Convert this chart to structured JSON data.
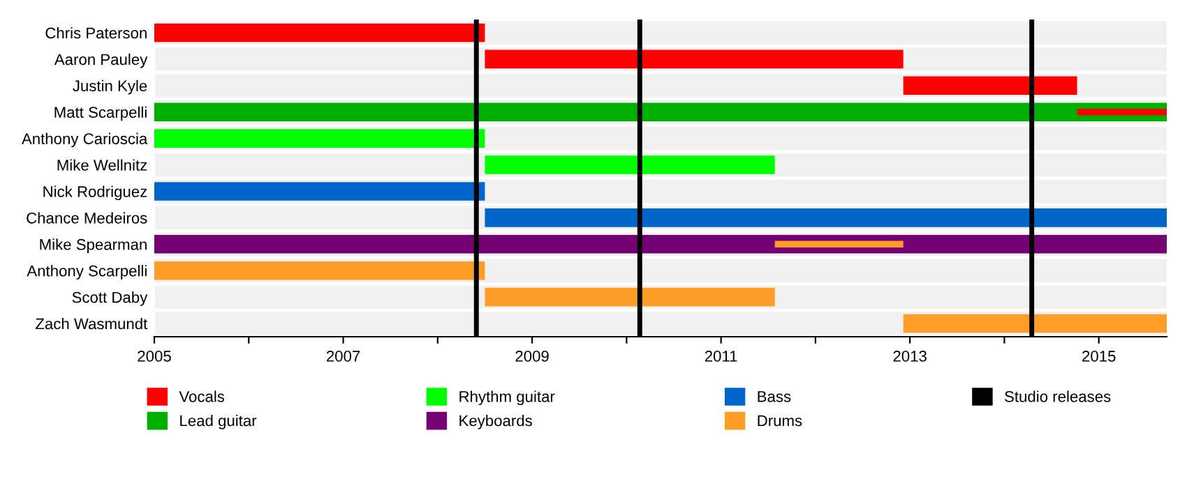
{
  "chart_data": {
    "type": "bar",
    "orientation": "horizontal",
    "categories": [
      "Chris Paterson",
      "Aaron Pauley",
      "Justin Kyle",
      "Matt Scarpelli",
      "Anthony Carioscia",
      "Mike Wellnitz",
      "Nick Rodriguez",
      "Chance Medeiros",
      "Mike Spearman",
      "Anthony Scarpelli",
      "Scott Daby",
      "Zach Wasmundt"
    ],
    "series": [
      {
        "name": "Vocals",
        "color": "#ff0000",
        "base": [
          2005,
          2008.5,
          2012.93,
          2014.77,
          null,
          null,
          null,
          null,
          null,
          null,
          null,
          null
        ],
        "values": [
          3.5,
          4.43,
          1.84,
          0.95,
          null,
          null,
          null,
          null,
          null,
          null,
          null,
          null
        ]
      },
      {
        "name": "Lead guitar",
        "color": "#00b000",
        "base": [
          null,
          null,
          null,
          2005,
          null,
          null,
          null,
          null,
          null,
          null,
          null,
          null
        ],
        "values": [
          null,
          null,
          null,
          10.72,
          null,
          null,
          null,
          null,
          null,
          null,
          null,
          null
        ]
      },
      {
        "name": "Rhythm guitar",
        "color": "#00ff00",
        "base": [
          null,
          null,
          null,
          null,
          2005,
          2008.5,
          null,
          null,
          null,
          null,
          null,
          null
        ],
        "values": [
          null,
          null,
          null,
          null,
          3.5,
          3.07,
          null,
          null,
          null,
          null,
          null,
          null
        ]
      },
      {
        "name": "Keyboards",
        "color": "#740074",
        "base": [
          null,
          null,
          null,
          null,
          null,
          null,
          null,
          null,
          2005,
          null,
          null,
          null
        ],
        "values": [
          null,
          null,
          null,
          null,
          null,
          null,
          null,
          null,
          10.72,
          null,
          null,
          null
        ]
      },
      {
        "name": "Bass",
        "color": "#0066cc",
        "base": [
          null,
          null,
          null,
          null,
          null,
          null,
          2005,
          2008.5,
          null,
          null,
          null,
          null
        ],
        "values": [
          null,
          null,
          null,
          null,
          null,
          null,
          3.5,
          7.22,
          null,
          null,
          null,
          null
        ]
      },
      {
        "name": "Drums",
        "color": "#ff9d26",
        "base": [
          null,
          null,
          null,
          null,
          null,
          null,
          null,
          null,
          2011.57,
          2005,
          2008.5,
          2012.93
        ],
        "values": [
          null,
          null,
          null,
          null,
          null,
          null,
          null,
          null,
          1.36,
          3.5,
          3.07,
          2.79
        ]
      }
    ],
    "ref_lines": [
      {
        "axis": "x",
        "value": 2008.41,
        "label": "Studio releases",
        "color": "#000000"
      },
      {
        "axis": "x",
        "value": 2010.14,
        "color": "#000000"
      },
      {
        "axis": "x",
        "value": 2014.29,
        "color": "#000000"
      }
    ],
    "xlim": [
      2005,
      2015.72
    ],
    "xticks": [
      2005,
      {
        "value": 2006,
        "label": null
      },
      2007,
      {
        "value": 2008,
        "label": null
      },
      2009,
      {
        "value": 2010,
        "label": null
      },
      2011,
      {
        "value": 2012,
        "label": null
      },
      2013,
      {
        "value": 2014,
        "label": null
      },
      2015
    ],
    "grid": "y",
    "legend": "bottom"
  }
}
